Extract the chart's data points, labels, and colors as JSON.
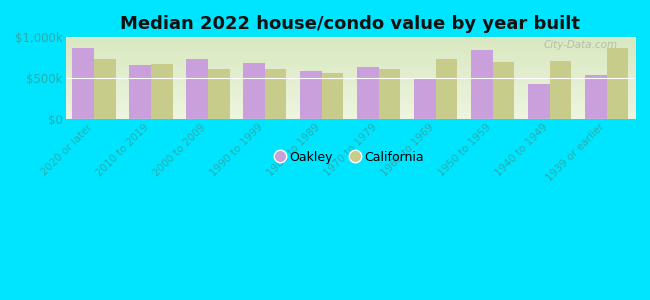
{
  "title": "Median 2022 house/condo value by year built",
  "categories": [
    "2020 or later",
    "2010 to 2019",
    "2000 to 2009",
    "1990 to 1999",
    "1980 to 1989",
    "1970 to 1979",
    "1960 to 1969",
    "1950 to 1959",
    "1940 to 1949",
    "1939 or earlier"
  ],
  "oakley_values": [
    870000,
    660000,
    740000,
    685000,
    590000,
    640000,
    500000,
    840000,
    435000,
    545000
  ],
  "california_values": [
    730000,
    680000,
    615000,
    615000,
    570000,
    610000,
    730000,
    695000,
    710000,
    870000
  ],
  "oakley_color": "#c9a0dc",
  "california_color": "#c8cc8a",
  "bg_top_color": "#d8e8c0",
  "bg_bottom_color": "#eef5e0",
  "outer_background": "#00e5ff",
  "ylim": [
    0,
    1000000
  ],
  "yticks": [
    0,
    500000,
    1000000
  ],
  "ytick_labels": [
    "$0",
    "$500k",
    "$1,000k"
  ],
  "tick_color": "#2aacac",
  "title_fontsize": 13,
  "legend_labels": [
    "Oakley",
    "California"
  ],
  "watermark": "City-Data.com"
}
